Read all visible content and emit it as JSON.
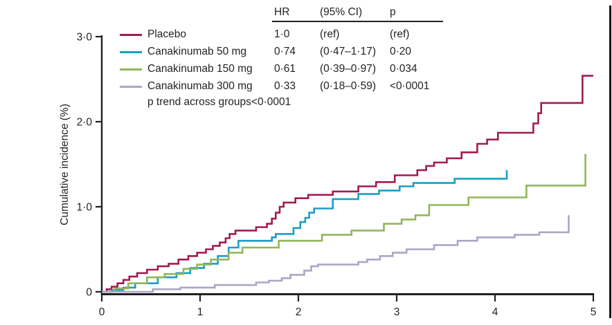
{
  "figure_title": "",
  "accent_text_color": "#231F20",
  "background_color": "#ffffff",
  "chart_data": {
    "type": "line",
    "subtype": "step-kaplan-meier-cumulative-incidence",
    "title": "",
    "xlabel": "",
    "ylabel": "Cumulative incidence (%)",
    "xlim": [
      0,
      5
    ],
    "ylim": [
      0,
      3.0
    ],
    "grid": false,
    "legend_position": "top-left",
    "xticks": [
      0,
      1,
      2,
      3,
      4,
      5
    ],
    "xtick_labels": [
      "0",
      "1",
      "2",
      "3",
      "4",
      "5"
    ],
    "yticks": [
      0,
      1,
      2,
      3
    ],
    "ytick_labels": [
      "0",
      "1·0",
      "2·0",
      "3·0"
    ],
    "stats_table": {
      "headers": [
        "HR",
        "(95% CI)",
        "p"
      ]
    },
    "p_trend_note": "p trend across groups<0·0001",
    "series": [
      {
        "name": "Placebo",
        "color": "#A11A50",
        "hr": "1·0",
        "ci": "(ref)",
        "p": "(ref)",
        "points": [
          [
            0,
            0
          ],
          [
            0.05,
            0.03
          ],
          [
            0.1,
            0.06
          ],
          [
            0.16,
            0.1
          ],
          [
            0.22,
            0.14
          ],
          [
            0.28,
            0.18
          ],
          [
            0.36,
            0.22
          ],
          [
            0.46,
            0.26
          ],
          [
            0.57,
            0.3
          ],
          [
            0.68,
            0.33
          ],
          [
            0.78,
            0.38
          ],
          [
            0.88,
            0.42
          ],
          [
            0.97,
            0.46
          ],
          [
            1.06,
            0.5
          ],
          [
            1.13,
            0.54
          ],
          [
            1.2,
            0.58
          ],
          [
            1.26,
            0.63
          ],
          [
            1.3,
            0.68
          ],
          [
            1.36,
            0.72
          ],
          [
            1.57,
            0.76
          ],
          [
            1.68,
            0.8
          ],
          [
            1.73,
            0.86
          ],
          [
            1.77,
            0.93
          ],
          [
            1.81,
            1.0
          ],
          [
            1.85,
            1.05
          ],
          [
            1.97,
            1.1
          ],
          [
            2.1,
            1.14
          ],
          [
            2.35,
            1.18
          ],
          [
            2.61,
            1.24
          ],
          [
            2.79,
            1.29
          ],
          [
            2.98,
            1.37
          ],
          [
            3.21,
            1.43
          ],
          [
            3.3,
            1.48
          ],
          [
            3.38,
            1.52
          ],
          [
            3.51,
            1.57
          ],
          [
            3.66,
            1.64
          ],
          [
            3.82,
            1.74
          ],
          [
            3.92,
            1.79
          ],
          [
            4.03,
            1.87
          ],
          [
            4.39,
            1.98
          ],
          [
            4.44,
            2.1
          ],
          [
            4.47,
            2.22
          ],
          [
            4.89,
            2.54
          ],
          [
            5,
            2.54
          ]
        ]
      },
      {
        "name": "Canakinumab 50 mg",
        "color": "#1B9DC5",
        "hr": "0·74",
        "ci": "(0·47–1·17)",
        "p": "0·20",
        "points": [
          [
            0,
            0
          ],
          [
            0.1,
            0.02
          ],
          [
            0.22,
            0.05
          ],
          [
            0.34,
            0.1
          ],
          [
            0.57,
            0.17
          ],
          [
            0.76,
            0.22
          ],
          [
            0.9,
            0.28
          ],
          [
            1.04,
            0.33
          ],
          [
            1.18,
            0.42
          ],
          [
            1.29,
            0.52
          ],
          [
            1.39,
            0.6
          ],
          [
            1.73,
            0.64
          ],
          [
            1.77,
            0.68
          ],
          [
            1.95,
            0.75
          ],
          [
            2.02,
            0.82
          ],
          [
            2.07,
            0.87
          ],
          [
            2.11,
            0.93
          ],
          [
            2.16,
            0.98
          ],
          [
            2.35,
            1.09
          ],
          [
            2.61,
            1.15
          ],
          [
            2.82,
            1.19
          ],
          [
            3.03,
            1.24
          ],
          [
            3.17,
            1.28
          ],
          [
            3.59,
            1.33
          ],
          [
            4.12,
            1.43
          ]
        ]
      },
      {
        "name": "Canakinumab 150 mg",
        "color": "#90B65A",
        "hr": "0·61",
        "ci": "(0·39–0·97)",
        "p": "0·034",
        "points": [
          [
            0,
            0
          ],
          [
            0.13,
            0.04
          ],
          [
            0.27,
            0.1
          ],
          [
            0.46,
            0.17
          ],
          [
            0.64,
            0.21
          ],
          [
            0.83,
            0.27
          ],
          [
            0.97,
            0.32
          ],
          [
            1.11,
            0.38
          ],
          [
            1.29,
            0.46
          ],
          [
            1.43,
            0.52
          ],
          [
            1.8,
            0.6
          ],
          [
            2.24,
            0.67
          ],
          [
            2.54,
            0.72
          ],
          [
            2.87,
            0.8
          ],
          [
            3.05,
            0.85
          ],
          [
            3.19,
            0.9
          ],
          [
            3.33,
            1.02
          ],
          [
            3.73,
            1.11
          ],
          [
            4.32,
            1.25
          ],
          [
            4.92,
            1.62
          ]
        ]
      },
      {
        "name": "Canakinumab 300 mg",
        "color": "#ABA5C6",
        "hr": "0·33",
        "ci": "(0·18–0·59)",
        "p": "<0·0001",
        "points": [
          [
            0,
            0
          ],
          [
            0.52,
            0.03
          ],
          [
            0.8,
            0.05
          ],
          [
            1.15,
            0.08
          ],
          [
            1.57,
            0.11
          ],
          [
            1.7,
            0.13
          ],
          [
            1.83,
            0.16
          ],
          [
            1.92,
            0.2
          ],
          [
            2.06,
            0.25
          ],
          [
            2.13,
            0.3
          ],
          [
            2.2,
            0.32
          ],
          [
            2.61,
            0.35
          ],
          [
            2.7,
            0.38
          ],
          [
            2.83,
            0.42
          ],
          [
            2.96,
            0.46
          ],
          [
            3.1,
            0.5
          ],
          [
            3.38,
            0.55
          ],
          [
            3.62,
            0.6
          ],
          [
            3.82,
            0.64
          ],
          [
            4.2,
            0.67
          ],
          [
            4.45,
            0.7
          ],
          [
            4.75,
            0.9
          ]
        ]
      }
    ]
  }
}
